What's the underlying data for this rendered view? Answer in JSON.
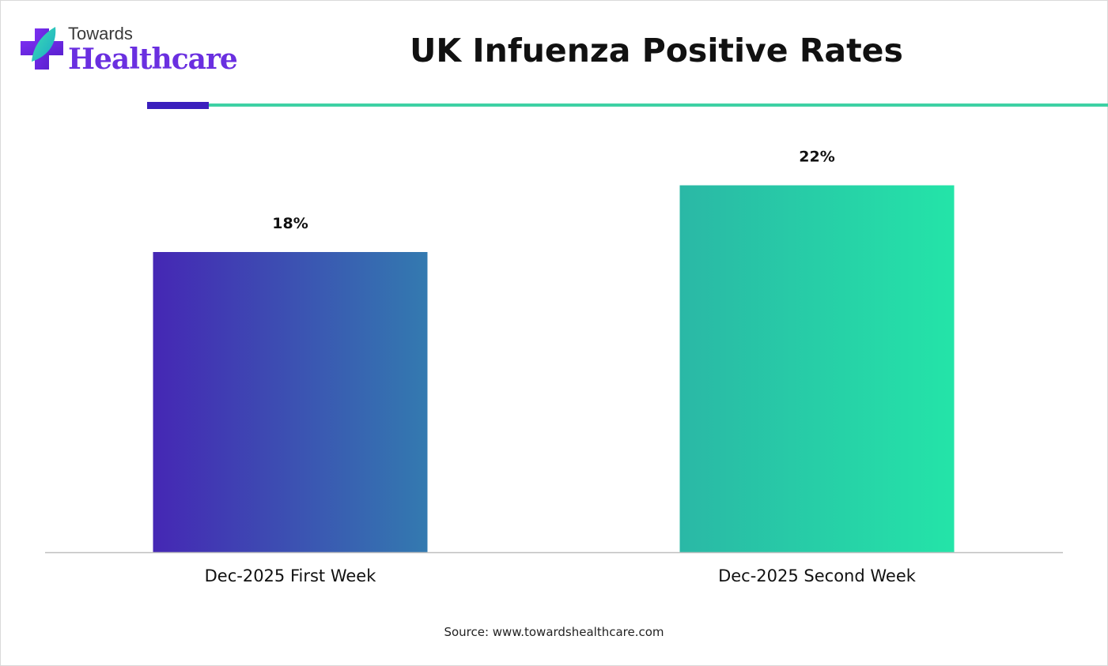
{
  "brand": {
    "line1": "Towards",
    "line2": "Healthcare",
    "colors": {
      "primary": "#6a2fe0",
      "accent": "#3ed1a4"
    }
  },
  "source": "Source: www.towardshealthcare.com",
  "chart_data": {
    "type": "bar",
    "title": "UK Infuenza Positive Rates",
    "xlabel": "",
    "ylabel": "",
    "categories": [
      "Dec-2025 First Week",
      "Dec-2025 Second Week"
    ],
    "values": [
      18,
      22
    ],
    "value_labels": [
      "18%",
      "22%"
    ],
    "unit": "%",
    "ylim": [
      0,
      25
    ],
    "grid": false,
    "legend": "none",
    "bar_gradients": [
      [
        "#4527b4",
        "#337ab0"
      ],
      [
        "#2ab8a6",
        "#24e4a8"
      ]
    ]
  }
}
